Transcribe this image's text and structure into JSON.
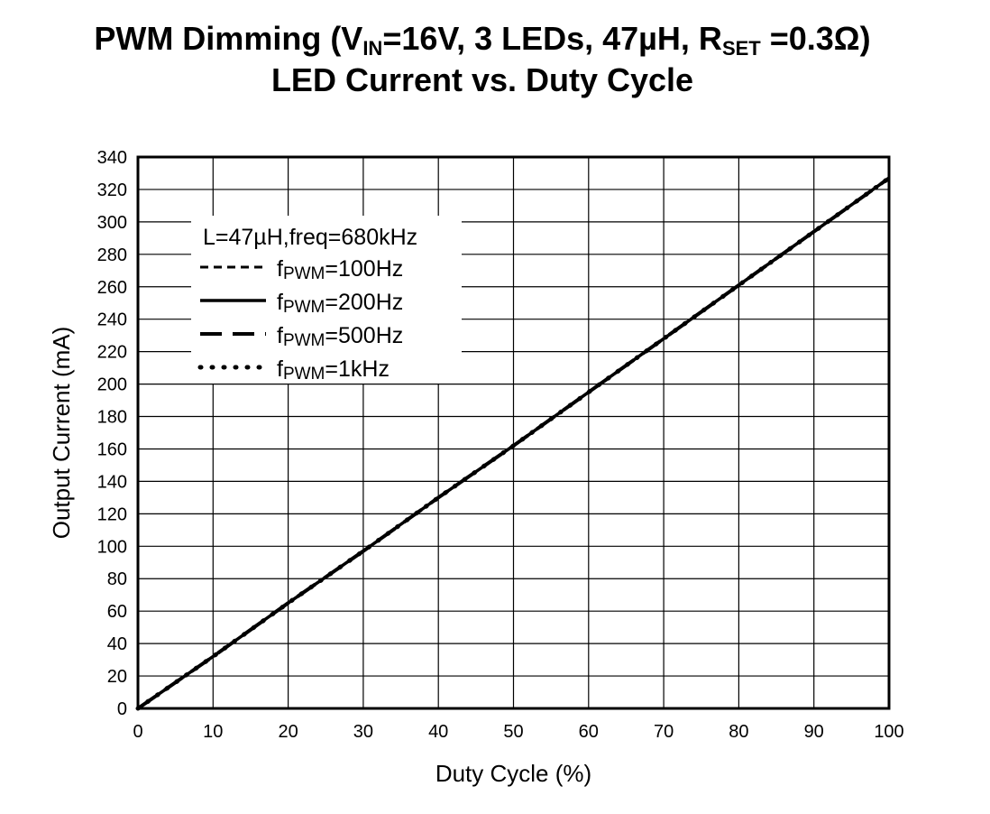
{
  "chart_data": {
    "type": "line",
    "title": {
      "line1": [
        {
          "text": "PWM Dimming (V",
          "sub": false
        },
        {
          "text": "IN",
          "sub": true
        },
        {
          "text": "=16V, 3 LEDs, 47µH, R",
          "sub": false
        },
        {
          "text": "SET",
          "sub": true
        },
        {
          "text": " =0.3Ω)",
          "sub": false
        }
      ],
      "line2": "LED Current vs. Duty Cycle"
    },
    "xlabel": "Duty Cycle (%)",
    "ylabel": "Output Current (mA)",
    "xlim": [
      0,
      100
    ],
    "ylim": [
      0,
      340
    ],
    "x_ticks": [
      0,
      10,
      20,
      30,
      40,
      50,
      60,
      70,
      80,
      90,
      100
    ],
    "y_ticks": [
      0,
      20,
      40,
      60,
      80,
      100,
      120,
      140,
      160,
      180,
      200,
      220,
      240,
      260,
      280,
      300,
      320,
      340
    ],
    "grid": true,
    "legend": {
      "placement": "top-left",
      "header": "L=47µH,freq=680kHz",
      "entries": [
        {
          "prefix": "f",
          "sub": "PWM",
          "suffix": "=100Hz",
          "style": "short-dash"
        },
        {
          "prefix": "f",
          "sub": "PWM",
          "suffix": "=200Hz",
          "style": "solid"
        },
        {
          "prefix": "f",
          "sub": "PWM",
          "suffix": "=500Hz",
          "style": "long-dash"
        },
        {
          "prefix": "f",
          "sub": "PWM",
          "suffix": "=1kHz",
          "style": "dotted"
        }
      ]
    },
    "series": [
      {
        "name": "fPWM=100Hz",
        "style": "short-dash",
        "x": [
          0,
          10,
          20,
          30,
          40,
          50,
          60,
          70,
          80,
          90,
          100
        ],
        "y": [
          0,
          32,
          65,
          97,
          130,
          162,
          195,
          228,
          261,
          294,
          327
        ]
      },
      {
        "name": "fPWM=200Hz",
        "style": "solid",
        "x": [
          0,
          10,
          20,
          30,
          40,
          50,
          60,
          70,
          80,
          90,
          100
        ],
        "y": [
          0,
          32,
          65,
          97,
          130,
          162,
          195,
          228,
          261,
          294,
          327
        ]
      },
      {
        "name": "fPWM=500Hz",
        "style": "long-dash",
        "x": [
          0,
          10,
          20,
          30,
          40,
          50,
          60,
          70,
          80,
          90,
          100
        ],
        "y": [
          0,
          32,
          65,
          97,
          130,
          162,
          195,
          228,
          261,
          294,
          327
        ]
      },
      {
        "name": "fPWM=1kHz",
        "style": "dotted",
        "x": [
          0,
          10,
          20,
          30,
          40,
          50,
          60,
          70,
          80,
          90,
          100
        ],
        "y": [
          0,
          32,
          65,
          97,
          130,
          162,
          195,
          228,
          261,
          294,
          327
        ]
      }
    ]
  }
}
